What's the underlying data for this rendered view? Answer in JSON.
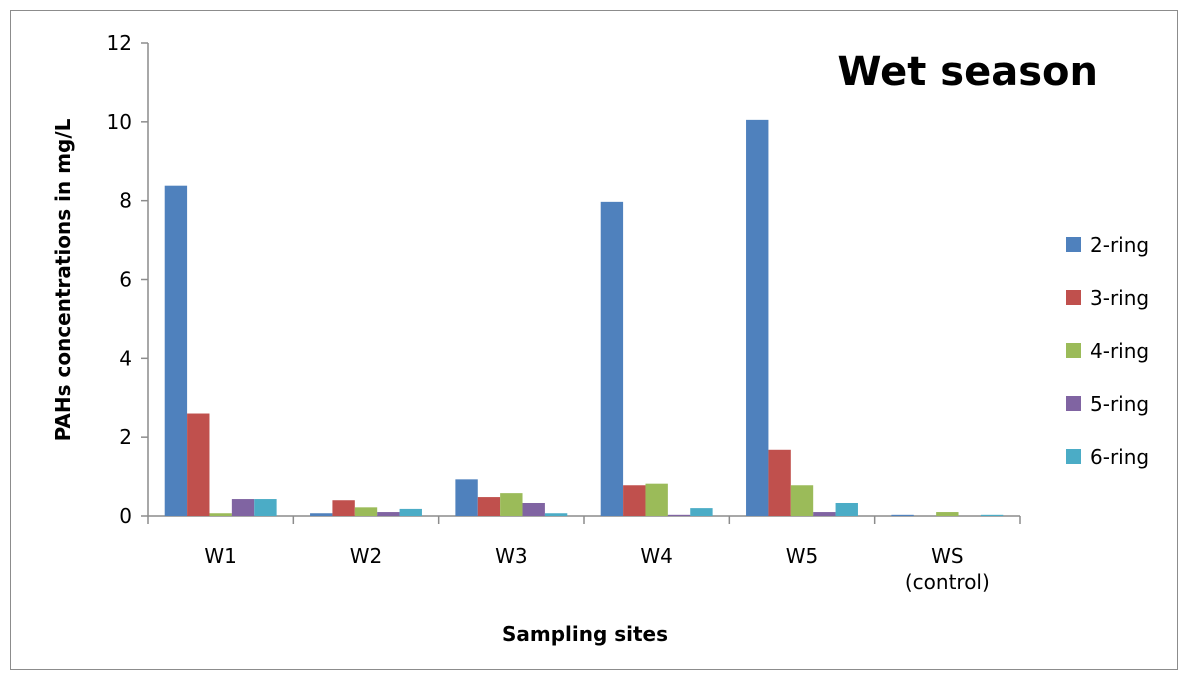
{
  "chart_data": {
    "type": "bar",
    "title": "Wet season",
    "xlabel": "Sampling sites",
    "ylabel": "PAHs concentrations in mg/L",
    "categories": [
      "W1",
      "W2",
      "W3",
      "W4",
      "W5",
      "WS (control)"
    ],
    "ylim": [
      0,
      12
    ],
    "yticks": [
      "0",
      "2",
      "4",
      "6",
      "8",
      "10",
      "12"
    ],
    "legend_position": "right",
    "grid": false,
    "series": [
      {
        "name": "2-ring",
        "color": "#4F81BD",
        "values": [
          8.38,
          0.07,
          0.93,
          7.97,
          10.05,
          0.03
        ]
      },
      {
        "name": "3-ring",
        "color": "#C0504D",
        "values": [
          2.6,
          0.4,
          0.48,
          0.78,
          1.68,
          0.0
        ]
      },
      {
        "name": "4-ring",
        "color": "#9BBB59",
        "values": [
          0.07,
          0.22,
          0.58,
          0.82,
          0.78,
          0.1
        ]
      },
      {
        "name": "5-ring",
        "color": "#8064A2",
        "values": [
          0.43,
          0.1,
          0.33,
          0.03,
          0.1,
          0.0
        ]
      },
      {
        "name": "6-ring",
        "color": "#4BACC6",
        "values": [
          0.43,
          0.18,
          0.07,
          0.2,
          0.33,
          0.03
        ]
      }
    ]
  }
}
